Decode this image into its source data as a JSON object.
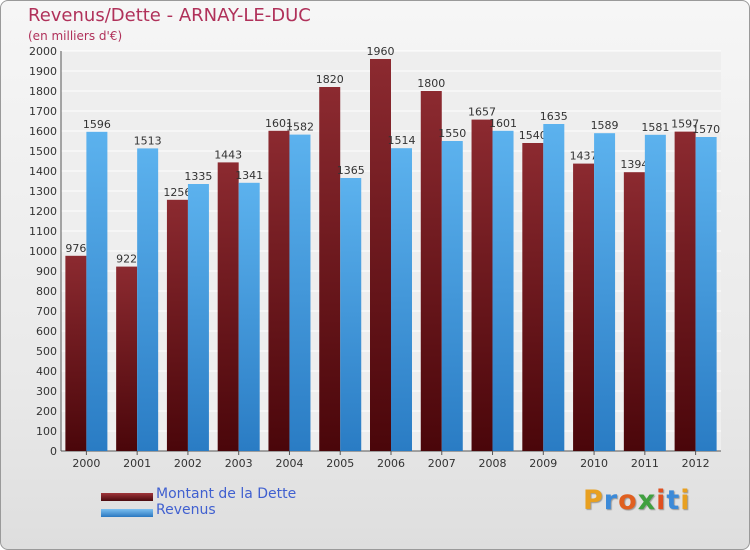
{
  "title": "Revenus/Dette - ARNAY-LE-DUC",
  "subtitle": "(en milliers d'€)",
  "legend": {
    "debt_label": "Montant de la Dette",
    "revenue_label": "Revenus"
  },
  "logo": {
    "letters": [
      "P",
      "r",
      "o",
      "x",
      "i",
      "t",
      "i"
    ],
    "colors": [
      "#e8a020",
      "#3c8ad8",
      "#e06020",
      "#40a040",
      "#e05020",
      "#3c8ad8",
      "#e8a020"
    ]
  },
  "colors": {
    "debt": "#7a1e22",
    "revenue": "#4aa0e0",
    "title": "#b0315a",
    "legend_text": "#4060d0"
  },
  "chart_data": {
    "type": "bar",
    "title": "Revenus/Dette - ARNAY-LE-DUC",
    "subtitle": "(en milliers d'€)",
    "categories": [
      "2000",
      "2001",
      "2002",
      "2003",
      "2004",
      "2005",
      "2006",
      "2007",
      "2008",
      "2009",
      "2010",
      "2011",
      "2012"
    ],
    "series": [
      {
        "name": "Montant de la Dette",
        "values": [
          976,
          922,
          1256,
          1443,
          1601,
          1820,
          1960,
          1800,
          1657,
          1540,
          1437,
          1394,
          1597
        ]
      },
      {
        "name": "Revenus",
        "values": [
          1596,
          1513,
          1335,
          1341,
          1582,
          1365,
          1514,
          1550,
          1601,
          1635,
          1589,
          1581,
          1570
        ]
      }
    ],
    "ylim": [
      0,
      2000
    ],
    "yticks": [
      0,
      100,
      200,
      300,
      400,
      500,
      600,
      700,
      800,
      900,
      1000,
      1100,
      1200,
      1300,
      1400,
      1500,
      1600,
      1700,
      1800,
      1900,
      2000
    ],
    "grid": true,
    "legend_position": "bottom-left"
  }
}
